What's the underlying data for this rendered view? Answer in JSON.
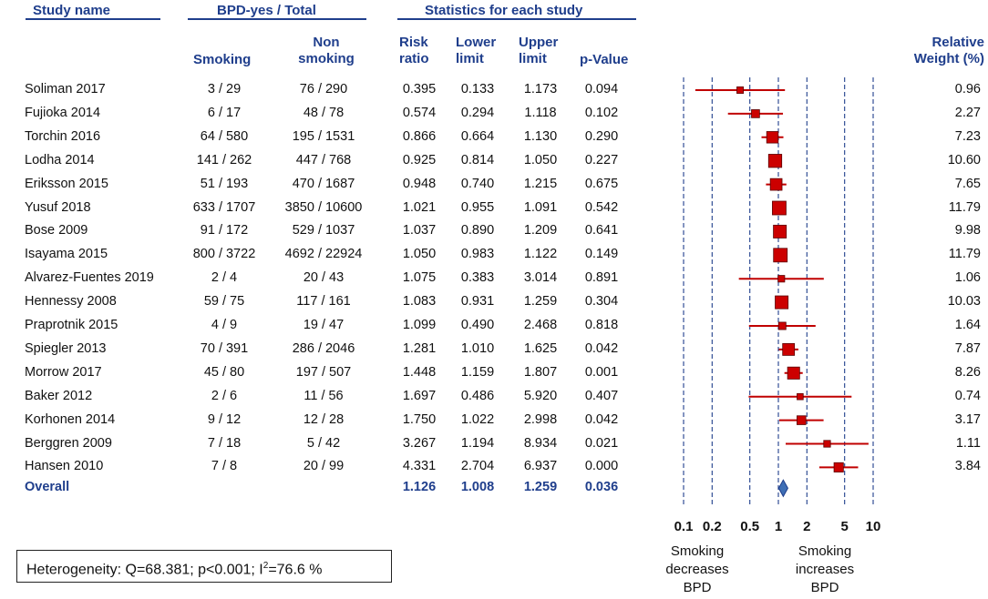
{
  "headers": {
    "study_name": "Study name",
    "bpd_group": "BPD-yes / Total",
    "stats_group": "Statistics for each study",
    "smoking": "Smoking",
    "non_l1": "Non",
    "non_l2": "smoking",
    "rr_l1": "Risk",
    "rr_l2": "ratio",
    "lower_l1": "Lower",
    "lower_l2": "limit",
    "upper_l1": "Upper",
    "upper_l2": "limit",
    "pvalue": "p-Value",
    "weight_l1": "Relative",
    "weight_l2": "Weight (%)"
  },
  "overall_label": "Overall",
  "heterogeneity": {
    "prefix": "Heterogeneity: Q=68.381;  p<0.001; I",
    "sup": "2",
    "suffix": "=76.6 %"
  },
  "footer": {
    "left": [
      "Smoking",
      "decreases",
      "BPD"
    ],
    "right": [
      "Smoking",
      "increases",
      "BPD"
    ]
  },
  "colors": {
    "header_blue": "#1f3e8c",
    "marker_red": "#cc0000",
    "ci_red": "#c00000",
    "diamond_blue": "#3f6fb5",
    "dashed_blue": "#1f3e8c"
  },
  "chart_data": {
    "type": "forest",
    "x_scale": "log",
    "x_ticks": [
      0.1,
      0.2,
      0.5,
      1,
      2,
      5,
      10
    ],
    "x_tick_labels": [
      "0.1",
      "0.2",
      "0.5",
      "1",
      "2",
      "5",
      "10"
    ],
    "studies": [
      {
        "name": "Soliman 2017",
        "smoking": "3 / 29",
        "nonsmoking": "76 / 290",
        "rr": 0.395,
        "rr_text": "0.395",
        "lower": 0.133,
        "lower_text": "0.133",
        "upper": 1.173,
        "upper_text": "1.173",
        "p_text": "0.094",
        "weight": 0.96,
        "weight_text": "0.96"
      },
      {
        "name": "Fujioka 2014",
        "smoking": "6 / 17",
        "nonsmoking": "48 / 78",
        "rr": 0.574,
        "rr_text": "0.574",
        "lower": 0.294,
        "lower_text": "0.294",
        "upper": 1.118,
        "upper_text": "1.118",
        "p_text": "0.102",
        "weight": 2.27,
        "weight_text": "2.27"
      },
      {
        "name": "Torchin 2016",
        "smoking": "64 / 580",
        "nonsmoking": "195 / 1531",
        "rr": 0.866,
        "rr_text": "0.866",
        "lower": 0.664,
        "lower_text": "0.664",
        "upper": 1.13,
        "upper_text": "1.130",
        "p_text": "0.290",
        "weight": 7.23,
        "weight_text": "7.23"
      },
      {
        "name": "Lodha 2014",
        "smoking": "141 / 262",
        "nonsmoking": "447 / 768",
        "rr": 0.925,
        "rr_text": "0.925",
        "lower": 0.814,
        "lower_text": "0.814",
        "upper": 1.05,
        "upper_text": "1.050",
        "p_text": "0.227",
        "weight": 10.6,
        "weight_text": "10.60"
      },
      {
        "name": "Eriksson 2015",
        "smoking": "51 / 193",
        "nonsmoking": "470 / 1687",
        "rr": 0.948,
        "rr_text": "0.948",
        "lower": 0.74,
        "lower_text": "0.740",
        "upper": 1.215,
        "upper_text": "1.215",
        "p_text": "0.675",
        "weight": 7.65,
        "weight_text": "7.65"
      },
      {
        "name": "Yusuf 2018",
        "smoking": "633 / 1707",
        "nonsmoking": "3850 / 10600",
        "rr": 1.021,
        "rr_text": "1.021",
        "lower": 0.955,
        "lower_text": "0.955",
        "upper": 1.091,
        "upper_text": "1.091",
        "p_text": "0.542",
        "weight": 11.79,
        "weight_text": "11.79"
      },
      {
        "name": "Bose 2009",
        "smoking": "91 / 172",
        "nonsmoking": "529 / 1037",
        "rr": 1.037,
        "rr_text": "1.037",
        "lower": 0.89,
        "lower_text": "0.890",
        "upper": 1.209,
        "upper_text": "1.209",
        "p_text": "0.641",
        "weight": 9.98,
        "weight_text": "9.98"
      },
      {
        "name": "Isayama 2015",
        "smoking": "800 / 3722",
        "nonsmoking": "4692 / 22924",
        "rr": 1.05,
        "rr_text": "1.050",
        "lower": 0.983,
        "lower_text": "0.983",
        "upper": 1.122,
        "upper_text": "1.122",
        "p_text": "0.149",
        "weight": 11.79,
        "weight_text": "11.79"
      },
      {
        "name": "Alvarez-Fuentes 2019",
        "smoking": "2 / 4",
        "nonsmoking": "20 / 43",
        "rr": 1.075,
        "rr_text": "1.075",
        "lower": 0.383,
        "lower_text": "0.383",
        "upper": 3.014,
        "upper_text": "3.014",
        "p_text": "0.891",
        "weight": 1.06,
        "weight_text": "1.06"
      },
      {
        "name": "Hennessy 2008",
        "smoking": "59 / 75",
        "nonsmoking": "117 / 161",
        "rr": 1.083,
        "rr_text": "1.083",
        "lower": 0.931,
        "lower_text": "0.931",
        "upper": 1.259,
        "upper_text": "1.259",
        "p_text": "0.304",
        "weight": 10.03,
        "weight_text": "10.03"
      },
      {
        "name": "Praprotnik 2015",
        "smoking": "4 / 9",
        "nonsmoking": "19 / 47",
        "rr": 1.099,
        "rr_text": "1.099",
        "lower": 0.49,
        "lower_text": "0.490",
        "upper": 2.468,
        "upper_text": "2.468",
        "p_text": "0.818",
        "weight": 1.64,
        "weight_text": "1.64"
      },
      {
        "name": "Spiegler 2013",
        "smoking": "70 / 391",
        "nonsmoking": "286 / 2046",
        "rr": 1.281,
        "rr_text": "1.281",
        "lower": 1.01,
        "lower_text": "1.010",
        "upper": 1.625,
        "upper_text": "1.625",
        "p_text": "0.042",
        "weight": 7.87,
        "weight_text": "7.87"
      },
      {
        "name": "Morrow 2017",
        "smoking": "45 / 80",
        "nonsmoking": "197 / 507",
        "rr": 1.448,
        "rr_text": "1.448",
        "lower": 1.159,
        "lower_text": "1.159",
        "upper": 1.807,
        "upper_text": "1.807",
        "p_text": "0.001",
        "weight": 8.26,
        "weight_text": "8.26"
      },
      {
        "name": "Baker 2012",
        "smoking": "2 / 6",
        "nonsmoking": "11 / 56",
        "rr": 1.697,
        "rr_text": "1.697",
        "lower": 0.486,
        "lower_text": "0.486",
        "upper": 5.92,
        "upper_text": "5.920",
        "p_text": "0.407",
        "weight": 0.74,
        "weight_text": "0.74"
      },
      {
        "name": "Korhonen 2014",
        "smoking": "9 / 12",
        "nonsmoking": "12 / 28",
        "rr": 1.75,
        "rr_text": "1.750",
        "lower": 1.022,
        "lower_text": "1.022",
        "upper": 2.998,
        "upper_text": "2.998",
        "p_text": "0.042",
        "weight": 3.17,
        "weight_text": "3.17"
      },
      {
        "name": "Berggren 2009",
        "smoking": "7 / 18",
        "nonsmoking": "5 / 42",
        "rr": 3.267,
        "rr_text": "3.267",
        "lower": 1.194,
        "lower_text": "1.194",
        "upper": 8.934,
        "upper_text": "8.934",
        "p_text": "0.021",
        "weight": 1.11,
        "weight_text": "1.11"
      },
      {
        "name": "Hansen 2010",
        "smoking": "7 / 8",
        "nonsmoking": "20 / 99",
        "rr": 4.331,
        "rr_text": "4.331",
        "lower": 2.704,
        "lower_text": "2.704",
        "upper": 6.937,
        "upper_text": "6.937",
        "p_text": "0.000",
        "weight": 3.84,
        "weight_text": "3.84"
      }
    ],
    "overall": {
      "rr": 1.126,
      "rr_text": "1.126",
      "lower": 1.008,
      "lower_text": "1.008",
      "upper": 1.259,
      "upper_text": "1.259",
      "p_text": "0.036"
    }
  }
}
